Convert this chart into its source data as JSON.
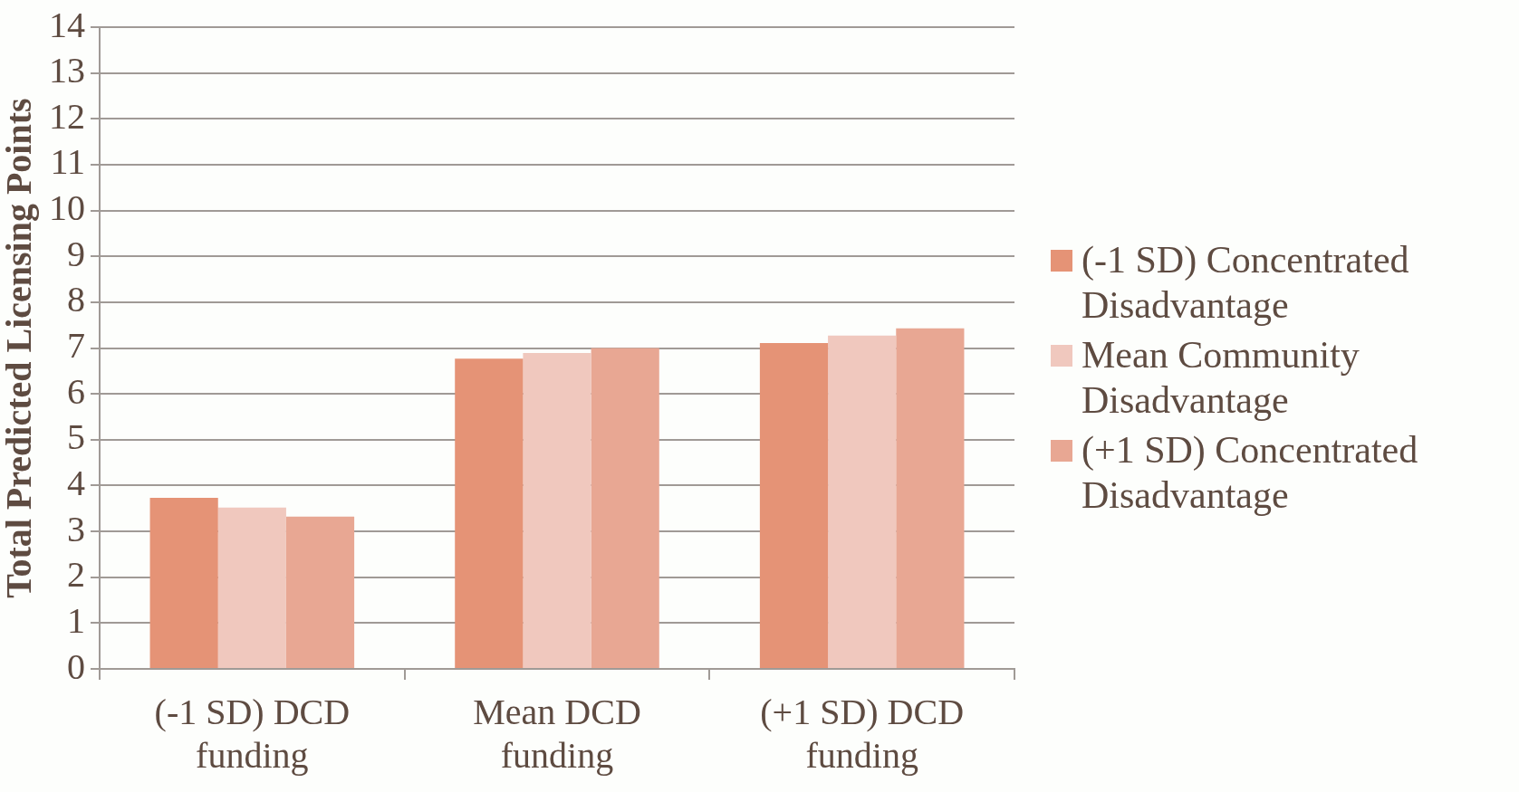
{
  "chart_data": {
    "type": "bar",
    "ylabel": "Total Predicted Licensing Points",
    "categories": [
      "(-1 SD) DCD funding",
      "Mean DCD funding",
      "(+1 SD) DCD funding"
    ],
    "series": [
      {
        "name": "(-1 SD) Concentrated Disadvantage",
        "color": "#e59376",
        "values": [
          3.73,
          6.77,
          7.11
        ]
      },
      {
        "name": "Mean Community Disadvantage",
        "color": "#f0c8be",
        "values": [
          3.52,
          6.89,
          7.27
        ]
      },
      {
        "name": "(+1 SD) Concentrated Disadvantage",
        "color": "#e8a793",
        "values": [
          3.32,
          7.0,
          7.43
        ]
      }
    ],
    "ylim": [
      0,
      14
    ],
    "yticks": [
      0,
      1,
      2,
      3,
      4,
      5,
      6,
      7,
      8,
      9,
      10,
      11,
      12,
      13,
      14
    ],
    "grid": "y",
    "legend": "right"
  }
}
